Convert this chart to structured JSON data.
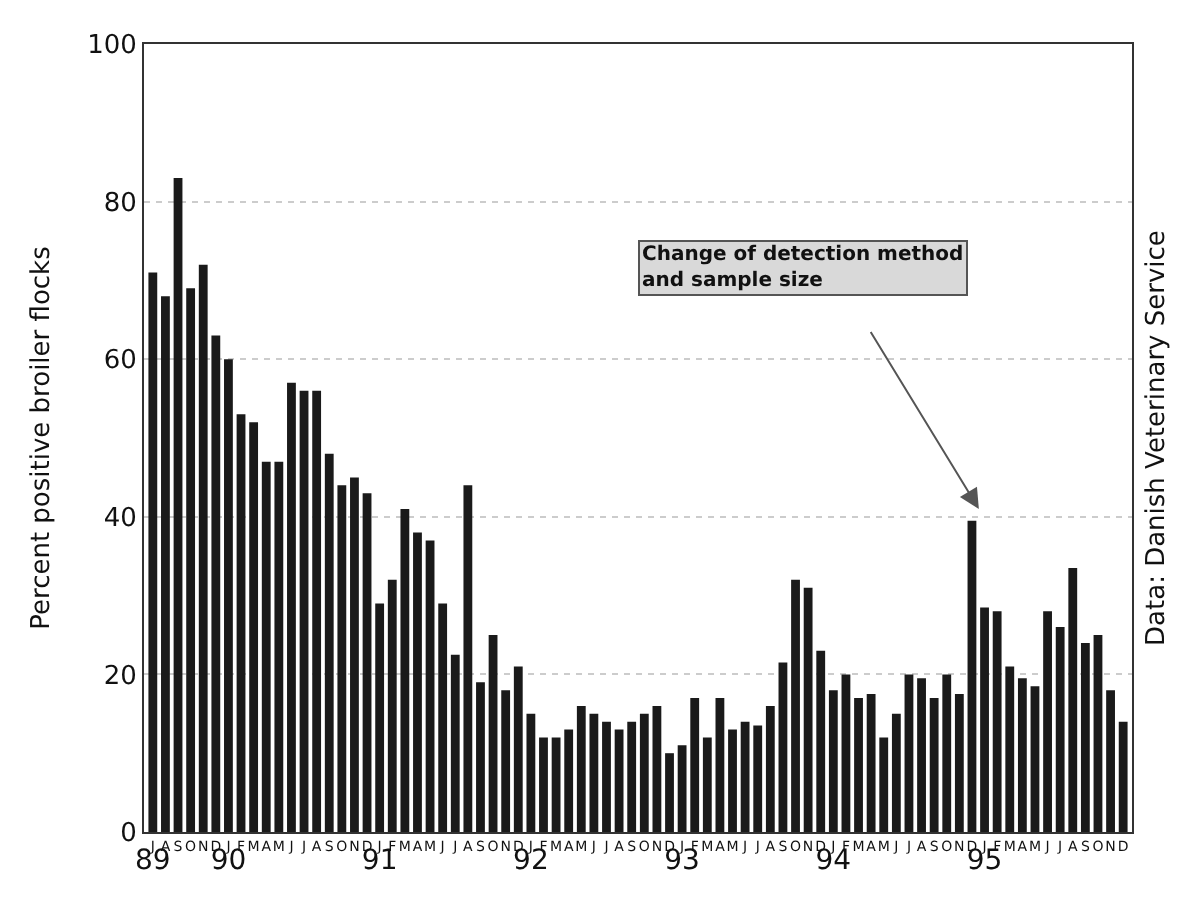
{
  "chart_data": {
    "type": "bar",
    "ylabel": "Percent positive broiler flocks",
    "categories": [
      "J\n89",
      "A",
      "S",
      "O",
      "N",
      "D",
      "J\n90",
      "F",
      "M",
      "A",
      "M",
      "J",
      "J",
      "A",
      "S",
      "O",
      "N",
      "D",
      "J\n91",
      "F",
      "M",
      "A",
      "M",
      "J",
      "J",
      "A",
      "S",
      "O",
      "N",
      "D",
      "J\n92",
      "F",
      "M",
      "A",
      "M",
      "J",
      "J",
      "A",
      "S",
      "O",
      "N",
      "D",
      "J\n93",
      "F",
      "M",
      "A",
      "M",
      "J",
      "J",
      "A",
      "S",
      "O",
      "N",
      "D",
      "J\n94",
      "F",
      "M",
      "A",
      "M",
      "J",
      "J",
      "A",
      "S",
      "O",
      "N",
      "D",
      "J\n95",
      "F",
      "M",
      "A",
      "M",
      "J",
      "J",
      "A",
      "S",
      "O",
      "N",
      "D"
    ],
    "values": [
      71,
      68,
      83,
      69,
      72,
      63,
      60,
      53,
      52,
      47,
      47,
      57,
      56,
      56,
      48,
      44,
      45,
      43,
      29,
      32,
      41,
      38,
      37,
      29,
      22.5,
      44,
      19,
      25,
      18,
      21,
      15,
      12,
      12,
      13,
      16,
      15,
      14,
      13,
      14,
      15,
      16,
      10,
      11,
      17,
      12,
      17,
      13,
      14,
      13.5,
      16,
      21.5,
      32,
      31,
      23,
      18,
      20,
      17,
      17.5,
      12,
      15,
      20,
      19.5,
      17,
      20,
      17.5,
      39.5,
      28.5,
      28,
      21,
      19.5,
      18.5,
      28,
      26,
      33.5,
      24,
      25,
      18,
      14
    ],
    "color": "#1a1a1a",
    "ylim": [
      0,
      100
    ],
    "yticks": [
      0,
      20,
      40,
      60,
      80,
      100
    ],
    "grid": "y",
    "legend": false,
    "annotations": [
      "Change of detection method and sample size",
      "Data: Danish Veterinary Service"
    ]
  }
}
